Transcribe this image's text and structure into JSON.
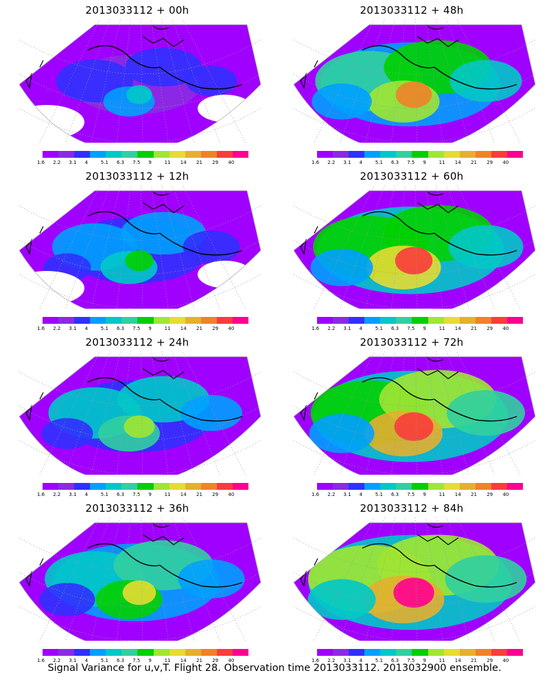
{
  "caption": "Signal Variance for u,v,T. Flight 28. Observation time 2013033112. 2013032900 ensemble.",
  "colorbar": {
    "colors": [
      "#a000ff",
      "#8a2be2",
      "#3030ff",
      "#00a0ff",
      "#00c8c8",
      "#30d0a0",
      "#00d000",
      "#a0e632",
      "#e6dc32",
      "#e6af2d",
      "#f08228",
      "#fa3c3c",
      "#ff0090"
    ],
    "tick_labels": [
      "1.6",
      "2.2",
      "3.1",
      "4",
      "5.1",
      "6.3",
      "7.5",
      "9",
      "11",
      "14",
      "21",
      "29",
      "40"
    ]
  },
  "panels": [
    {
      "title": "2013033112 + 00h",
      "intensity": 0.05
    },
    {
      "title": "2013033112 + 48h",
      "intensity": 0.55
    },
    {
      "title": "2013033112 + 12h",
      "intensity": 0.18
    },
    {
      "title": "2013033112 + 60h",
      "intensity": 0.62
    },
    {
      "title": "2013033112 + 24h",
      "intensity": 0.3
    },
    {
      "title": "2013033112 + 72h",
      "intensity": 0.7
    },
    {
      "title": "2013033112 + 36h",
      "intensity": 0.42
    },
    {
      "title": "2013033112 + 84h",
      "intensity": 0.78
    }
  ]
}
